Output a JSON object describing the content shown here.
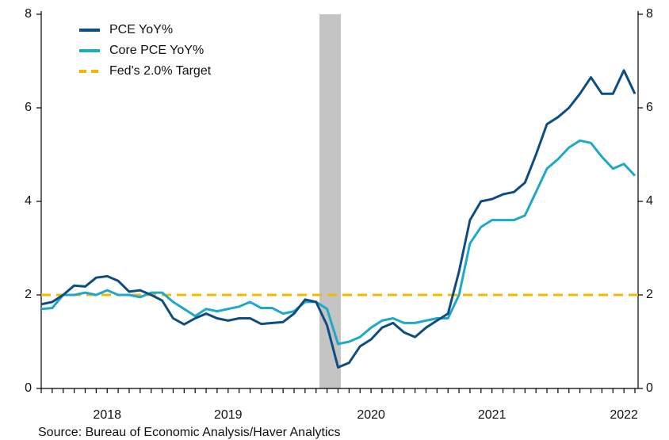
{
  "chart_data": {
    "type": "line",
    "categories": [
      null,
      null,
      null,
      null,
      null,
      null,
      "2018",
      null,
      null,
      null,
      null,
      null,
      null,
      null,
      null,
      null,
      null,
      "2019",
      null,
      null,
      null,
      null,
      null,
      null,
      null,
      null,
      null,
      null,
      null,
      null,
      "2020",
      null,
      null,
      null,
      null,
      null,
      null,
      null,
      null,
      null,
      null,
      "2021",
      null,
      null,
      null,
      null,
      null,
      null,
      null,
      null,
      null,
      null,
      null,
      "2022",
      null
    ],
    "series": [
      {
        "name": "PCE YoY%",
        "color": "#0f4c81",
        "values": [
          1.8,
          1.85,
          2.0,
          2.2,
          2.18,
          2.37,
          2.4,
          2.3,
          2.07,
          2.1,
          2.0,
          1.88,
          1.5,
          1.37,
          1.5,
          1.6,
          1.5,
          1.45,
          1.5,
          1.5,
          1.38,
          1.4,
          1.42,
          1.6,
          1.9,
          1.85,
          1.35,
          0.45,
          0.55,
          0.9,
          1.05,
          1.3,
          1.4,
          1.2,
          1.1,
          1.3,
          1.45,
          1.6,
          2.5,
          3.6,
          4.0,
          4.05,
          4.15,
          4.2,
          4.4,
          5.0,
          5.65,
          5.8,
          6.0,
          6.3,
          6.65,
          6.3,
          6.3,
          6.8,
          6.3
        ]
      },
      {
        "name": "Core PCE YoY%",
        "color": "#1fa8c9",
        "values": [
          1.7,
          1.72,
          2.0,
          2.0,
          2.05,
          2.0,
          2.1,
          2.0,
          2.0,
          1.95,
          2.05,
          2.05,
          1.85,
          1.7,
          1.55,
          1.7,
          1.65,
          1.7,
          1.75,
          1.85,
          1.72,
          1.72,
          1.6,
          1.65,
          1.85,
          1.85,
          1.7,
          0.95,
          1.0,
          1.1,
          1.3,
          1.45,
          1.5,
          1.4,
          1.4,
          1.45,
          1.5,
          1.5,
          2.0,
          3.1,
          3.45,
          3.6,
          3.6,
          3.6,
          3.7,
          4.2,
          4.7,
          4.9,
          5.15,
          5.3,
          5.25,
          4.95,
          4.7,
          4.8,
          4.55
        ]
      }
    ],
    "reference_lines": [
      {
        "name": "Fed's 2.0% Target",
        "value": 2,
        "color": "#f5b800",
        "dashed": true
      }
    ],
    "ylim": [
      0,
      8
    ],
    "yticks": [
      0,
      2,
      4,
      6,
      8
    ],
    "y2lim": [
      0,
      8
    ],
    "y2ticks": [
      0,
      2,
      4,
      6,
      8
    ],
    "source": "Source:   Bureau of Economic Analysis/Haver Analytics"
  }
}
